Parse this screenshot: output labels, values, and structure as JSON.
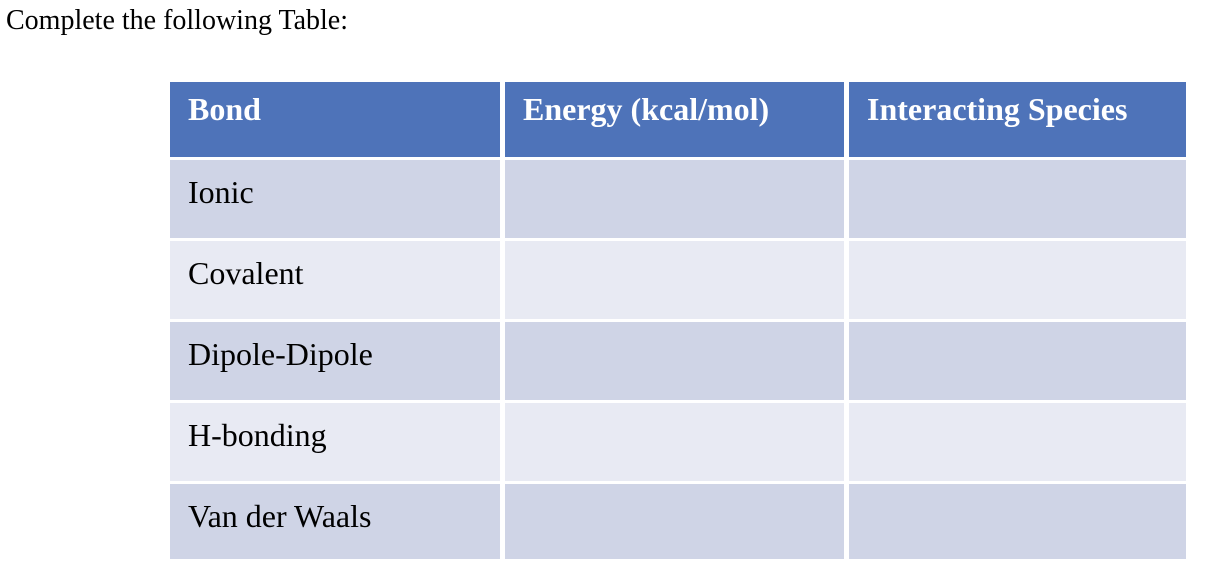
{
  "page": {
    "title": "Complete the following Table:"
  },
  "table": {
    "headers": {
      "bond": "Bond",
      "energy": "Energy (kcal/mol)",
      "species": "Interacting Species"
    },
    "rows": [
      {
        "bond": "Ionic",
        "energy": "",
        "species": ""
      },
      {
        "bond": "Covalent",
        "energy": "",
        "species": ""
      },
      {
        "bond": "Dipole-Dipole",
        "energy": "",
        "species": ""
      },
      {
        "bond": "H-bonding",
        "energy": "",
        "species": ""
      },
      {
        "bond": "Van der Waals",
        "energy": "",
        "species": ""
      }
    ]
  },
  "colors": {
    "header_bg": "#4e73b9",
    "header_text": "#ffffff",
    "row_dark": "#cfd4e6",
    "row_light": "#e8eaf3",
    "body_text": "#000000",
    "page_bg": "#ffffff"
  }
}
